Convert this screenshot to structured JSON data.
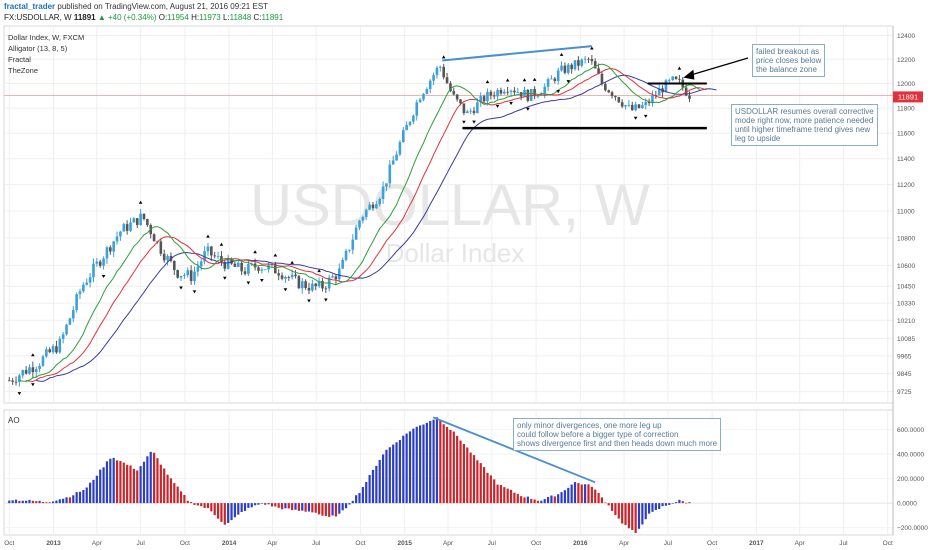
{
  "header": {
    "user": "fractal_trader",
    "published": "published on TradingView.com, August 21, 2016 09:21 EST",
    "symbol": "FX:USDOLLAR, W",
    "last": "11891",
    "change": "▲ +40 (+0.34%)",
    "open_label": "O:",
    "open": "11954",
    "high_label": "H:",
    "high": "11973",
    "low_label": "L:",
    "low": "11848",
    "close_label": "C:",
    "close": "11891"
  },
  "legend": [
    "Dollar Index, W, FXCM",
    "Alligator (13, 8, 5)",
    "Fractal",
    "TheZone"
  ],
  "watermark": {
    "symbol": "USDOLLAR, W",
    "description": "Dollar Index"
  },
  "price_tag": "11891",
  "ao_label": "AO",
  "notes": {
    "breakout": [
      "failed breakout as",
      "price closes below",
      "the balance zone"
    ],
    "corrective": [
      "USDOLLAR resumes overall corrective",
      "mode right now, more patience needed",
      "until higher timeframe trend gives new",
      "leg to upside"
    ],
    "divergence": [
      "only minor divergences, one more leg up",
      "could follow before a bigger type of correction",
      "shows divergence first and then heads down much more"
    ]
  },
  "colors": {
    "up": "#3da0d9",
    "down": "#555555",
    "lips": "#2e9e3a",
    "teeth": "#e0323c",
    "jaw": "#3a3a9e",
    "ao_up": "#2c3fc4",
    "ao_down": "#c8252c",
    "trendline": "#4a8fd0",
    "level": "#000000"
  },
  "chart_data": {
    "type": "candlestick",
    "title": "Dollar Index, W, FXCM",
    "grid": true,
    "price_axis": {
      "ticks": [
        9725,
        9845,
        9965,
        10085,
        10210,
        10330,
        10450,
        10600,
        10800,
        11000,
        11200,
        11400,
        11600,
        11800,
        12000,
        12200,
        12400
      ],
      "scale": "log",
      "range": [
        9650,
        12480
      ]
    },
    "time_axis": {
      "ticks": [
        "Oct",
        "2013",
        "Apr",
        "Jul",
        "Oct",
        "2014",
        "Apr",
        "Jul",
        "Oct",
        "2015",
        "Apr",
        "Jul",
        "Oct",
        "2016",
        "Apr",
        "Jul",
        "Oct",
        "2017",
        "Apr",
        "Jul",
        "Oct"
      ]
    },
    "price_path": [
      [
        "2012-10-01",
        9800
      ],
      [
        "2012-12-01",
        9920
      ],
      [
        "2013-01-15",
        10050
      ],
      [
        "2013-03-01",
        10450
      ],
      [
        "2013-05-20",
        10850
      ],
      [
        "2013-07-05",
        10960
      ],
      [
        "2013-08-15",
        10700
      ],
      [
        "2013-09-15",
        10550
      ],
      [
        "2013-10-15",
        10520
      ],
      [
        "2013-11-15",
        10700
      ],
      [
        "2013-12-20",
        10620
      ],
      [
        "2014-02-01",
        10560
      ],
      [
        "2014-03-01",
        10600
      ],
      [
        "2014-04-15",
        10560
      ],
      [
        "2014-05-20",
        10480
      ],
      [
        "2014-06-25",
        10440
      ],
      [
        "2014-07-15",
        10450
      ],
      [
        "2014-08-20",
        10560
      ],
      [
        "2014-10-01",
        10950
      ],
      [
        "2014-11-15",
        11150
      ],
      [
        "2014-12-20",
        11500
      ],
      [
        "2015-02-01",
        11900
      ],
      [
        "2015-03-15",
        12150
      ],
      [
        "2015-04-10",
        11900
      ],
      [
        "2015-05-10",
        11750
      ],
      [
        "2015-06-15",
        11880
      ],
      [
        "2015-08-01",
        11980
      ],
      [
        "2015-09-15",
        11900
      ],
      [
        "2015-10-15",
        11950
      ],
      [
        "2015-11-20",
        12100
      ],
      [
        "2015-12-20",
        12150
      ],
      [
        "2016-01-20",
        12200
      ],
      [
        "2016-02-15",
        12000
      ],
      [
        "2016-03-15",
        11900
      ],
      [
        "2016-04-15",
        11780
      ],
      [
        "2016-05-15",
        11820
      ],
      [
        "2016-06-15",
        11950
      ],
      [
        "2016-07-10",
        12020
      ],
      [
        "2016-07-25",
        12000
      ],
      [
        "2016-08-19",
        11891
      ]
    ],
    "candle_volatility": 45,
    "ohlc_last": {
      "open": 11954,
      "high": 11973,
      "low": 11848,
      "close": 11891
    },
    "alligator": {
      "jaw": 13,
      "teeth": 8,
      "lips": 5
    },
    "balance_zone": 12000,
    "support_level": 11640,
    "trendline_highs": [
      [
        "2015-03-20",
        12190
      ],
      [
        "2016-01-25",
        12310
      ]
    ],
    "ao_path": [
      [
        "2012-10-01",
        30
      ],
      [
        "2012-12-20",
        10
      ],
      [
        "2013-02-01",
        50
      ],
      [
        "2013-03-10",
        120
      ],
      [
        "2013-05-01",
        380
      ],
      [
        "2013-06-25",
        270
      ],
      [
        "2013-07-25",
        430
      ],
      [
        "2013-09-01",
        200
      ],
      [
        "2013-10-10",
        10
      ],
      [
        "2013-11-20",
        -50
      ],
      [
        "2013-12-25",
        -180
      ],
      [
        "2014-02-01",
        -60
      ],
      [
        "2014-03-10",
        0
      ],
      [
        "2014-04-15",
        -40
      ],
      [
        "2014-05-20",
        -60
      ],
      [
        "2014-06-25",
        -70
      ],
      [
        "2014-07-25",
        -120
      ],
      [
        "2014-08-20",
        -90
      ],
      [
        "2014-10-01",
        100
      ],
      [
        "2014-11-20",
        420
      ],
      [
        "2015-01-15",
        600
      ],
      [
        "2015-03-10",
        700
      ],
      [
        "2015-04-20",
        550
      ],
      [
        "2015-06-01",
        350
      ],
      [
        "2015-07-15",
        150
      ],
      [
        "2015-09-01",
        60
      ],
      [
        "2015-10-10",
        20
      ],
      [
        "2015-11-20",
        80
      ],
      [
        "2015-12-20",
        170
      ],
      [
        "2016-01-25",
        140
      ],
      [
        "2016-02-25",
        0
      ],
      [
        "2016-03-25",
        -150
      ],
      [
        "2016-04-25",
        -250
      ],
      [
        "2016-05-20",
        -100
      ],
      [
        "2016-06-20",
        -30
      ],
      [
        "2016-07-25",
        20
      ],
      [
        "2016-08-19",
        0
      ]
    ],
    "ao_axis": {
      "ticks": [
        600,
        400,
        200,
        0,
        -200
      ],
      "range": [
        -260,
        760
      ]
    },
    "ao_divergence_line": [
      [
        "2015-03-01",
        700
      ],
      [
        "2016-02-01",
        170
      ]
    ]
  }
}
